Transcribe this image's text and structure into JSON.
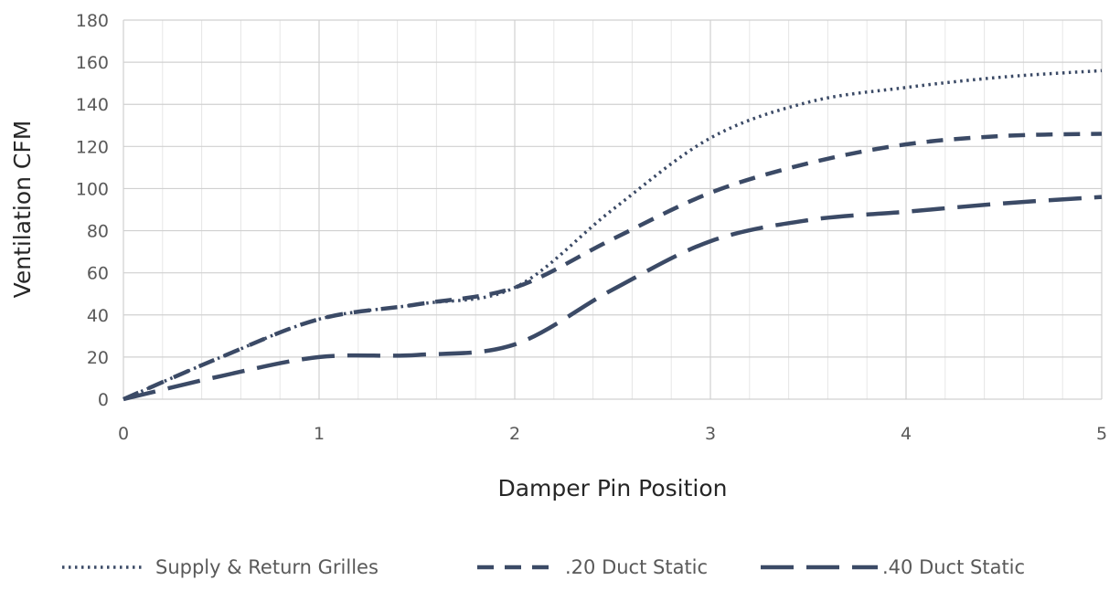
{
  "chart_data": {
    "type": "line",
    "title": "",
    "xlabel": "Damper Pin Position",
    "ylabel": "Ventilation CFM",
    "xlim": [
      0,
      5
    ],
    "ylim": [
      0,
      180
    ],
    "xticks": [
      "0",
      "1",
      "2",
      "3",
      "4",
      "5"
    ],
    "yticks": [
      "0",
      "20",
      "40",
      "60",
      "80",
      "100",
      "120",
      "140",
      "160",
      "180"
    ],
    "grid": true,
    "minor_grid": true,
    "legend_position": "bottom",
    "series": [
      {
        "name": "Supply & Return Grilles",
        "style": "dotted",
        "color": "#3b4a66",
        "x": [
          0,
          0.5,
          1,
          1.5,
          2,
          2.5,
          3,
          3.5,
          4,
          4.5,
          5
        ],
        "y": [
          0,
          20,
          38,
          45,
          53,
          90,
          124,
          141,
          148,
          153,
          156
        ]
      },
      {
        "name": ".20 Duct Static",
        "style": "dashed",
        "color": "#3b4a66",
        "x": [
          0,
          0.5,
          1,
          1.5,
          2,
          2.5,
          3,
          3.5,
          4,
          4.5,
          5
        ],
        "y": [
          0,
          20,
          38,
          45,
          53,
          76,
          98,
          112,
          121,
          125,
          126
        ]
      },
      {
        "name": ".40 Duct Static",
        "style": "long-dash",
        "color": "#3b4a66",
        "x": [
          0,
          0.5,
          1,
          1.5,
          2,
          2.5,
          3,
          3.5,
          4,
          4.5,
          5
        ],
        "y": [
          0,
          11,
          20,
          21,
          26,
          52,
          75,
          85,
          89,
          93,
          96
        ]
      }
    ]
  }
}
